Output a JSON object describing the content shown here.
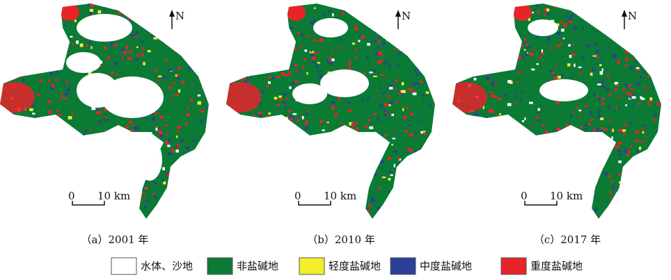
{
  "panels": [
    {
      "caption": "（a）2001 年",
      "north": "N",
      "scale_start": "0",
      "scale_end": "10 km"
    },
    {
      "caption": "（b）2010 年",
      "north": "N",
      "scale_start": "0",
      "scale_end": "10 km"
    },
    {
      "caption": "（c）2017 年",
      "north": "N",
      "scale_start": "0",
      "scale_end": "10 km"
    }
  ],
  "legend": [
    {
      "label": "水体、沙地",
      "color": "#ffffff"
    },
    {
      "label": "非盐碱地",
      "color": "#0a7a35"
    },
    {
      "label": "轻度盐碱地",
      "color": "#f2ee2a"
    },
    {
      "label": "中度盐碱地",
      "color": "#2c3f9a"
    },
    {
      "label": "重度盐碱地",
      "color": "#e8232a"
    }
  ]
}
